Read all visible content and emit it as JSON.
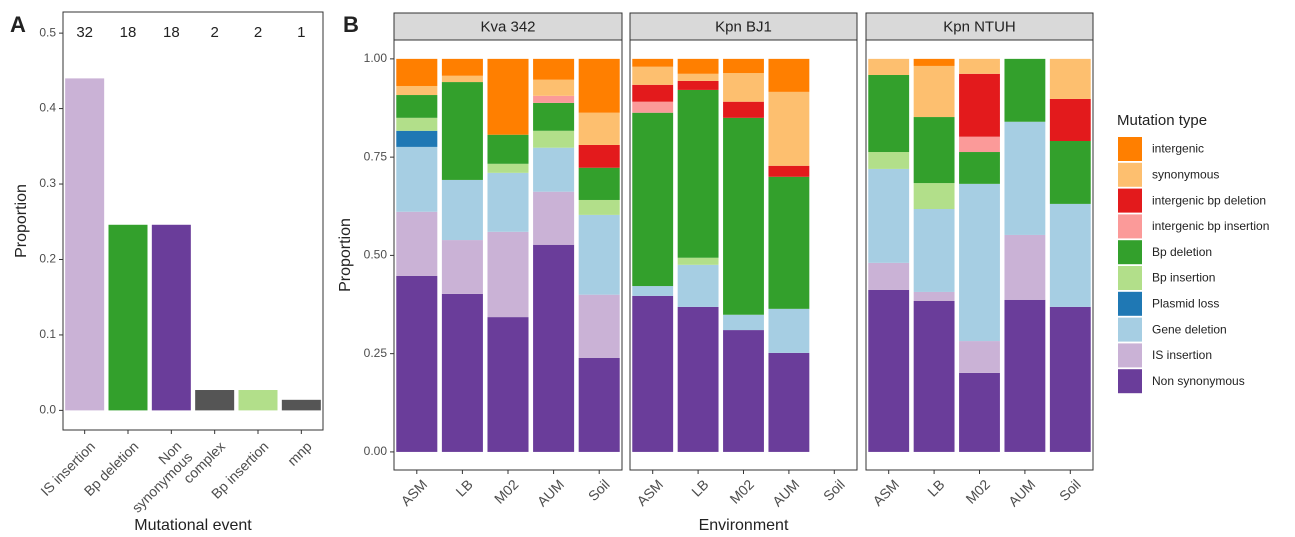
{
  "chart_data": [
    {
      "type": "bar",
      "panel_label": "A",
      "ylabel": "Proportion",
      "xlabel": "Mutational event",
      "categories": [
        "IS insertion",
        "Bp deletion",
        "Non\nsynonymous",
        "complex",
        "Bp insertion",
        "mnp"
      ],
      "values": [
        0.44,
        0.246,
        0.246,
        0.027,
        0.027,
        0.014
      ],
      "counts": [
        32,
        18,
        18,
        2,
        2,
        1
      ],
      "colors": [
        "#cab2d6",
        "#33a02c",
        "#6a3d9a",
        "#555555",
        "#b2df8a",
        "#555555"
      ],
      "ylim": [
        -0.026,
        0.528
      ],
      "yticks": [
        {
          "value": 0,
          "label": "0.0"
        },
        {
          "value": 0.1,
          "label": "0.1"
        },
        {
          "value": 0.2,
          "label": "0.2"
        },
        {
          "value": 0.3,
          "label": "0.3"
        },
        {
          "value": 0.4,
          "label": "0.4"
        },
        {
          "value": 0.5,
          "label": "0.5"
        }
      ]
    },
    {
      "type": "stacked_bar",
      "panel_label": "B",
      "ylabel": "Proportion",
      "xlabel": "Environment",
      "legend_title": "Mutation type",
      "categories": [
        "ASM",
        "LB",
        "M02",
        "AUM",
        "Soil"
      ],
      "series": [
        {
          "name": "intergenic",
          "color": "#ff7f00"
        },
        {
          "name": "synonymous",
          "color": "#fdbf6f"
        },
        {
          "name": "intergenic bp deletion",
          "color": "#e31a1c"
        },
        {
          "name": "intergenic bp insertion",
          "color": "#fb9a99"
        },
        {
          "name": "Bp deletion",
          "color": "#33a02c"
        },
        {
          "name": "Bp insertion",
          "color": "#b2df8a"
        },
        {
          "name": "Plasmid loss",
          "color": "#1f78b4"
        },
        {
          "name": "Gene deletion",
          "color": "#a6cee3"
        },
        {
          "name": "IS insertion",
          "color": "#cab2d6"
        },
        {
          "name": "Non synonymous",
          "color": "#6a3d9a"
        }
      ],
      "facets": [
        {
          "title": "Kva 342",
          "values": [
            [
              0.069,
              0.043,
              0.193,
              0.053,
              0.137
            ],
            [
              0.023,
              0.016,
              0,
              0.041,
              0.082
            ],
            [
              0,
              0,
              0,
              0,
              0.058
            ],
            [
              0,
              0,
              0,
              0.018,
              0
            ],
            [
              0.058,
              0.249,
              0.074,
              0.071,
              0.082
            ],
            [
              0.033,
              0,
              0.023,
              0.043,
              0.038
            ],
            [
              0.041,
              0,
              0,
              0,
              0
            ],
            [
              0.165,
              0.153,
              0.15,
              0.112,
              0.203
            ],
            [
              0.163,
              0.137,
              0.217,
              0.135,
              0.161
            ],
            [
              0.448,
              0.402,
              0.343,
              0.527,
              0.239
            ]
          ]
        },
        {
          "title": "Kpn BJ1",
          "values": [
            [
              0.02,
              0.038,
              0.036,
              0.084,
              0
            ],
            [
              0.046,
              0.018,
              0.073,
              0.188,
              0
            ],
            [
              0.043,
              0.023,
              0.041,
              0.028,
              0
            ],
            [
              0.028,
              0,
              0,
              0,
              0
            ],
            [
              0.441,
              0.427,
              0.501,
              0.336,
              0
            ],
            [
              0,
              0.018,
              0,
              0,
              0
            ],
            [
              0,
              0,
              0,
              0,
              0
            ],
            [
              0.025,
              0.107,
              0.039,
              0.112,
              0
            ],
            [
              0,
              0,
              0,
              0,
              0
            ],
            [
              0.397,
              0.369,
              0.31,
              0.252,
              0
            ]
          ]
        },
        {
          "title": "Kpn NTUH",
          "values": [
            [
              0,
              0.018,
              0,
              0,
              0
            ],
            [
              0.041,
              0.13,
              0.038,
              0,
              0.102
            ],
            [
              0,
              0,
              0.16,
              0,
              0.107
            ],
            [
              0,
              0,
              0.039,
              0,
              0
            ],
            [
              0.196,
              0.168,
              0.081,
              0.16,
              0.16
            ],
            [
              0.043,
              0.066,
              0,
              0,
              0
            ],
            [
              0,
              0,
              0,
              0,
              0
            ],
            [
              0.239,
              0.211,
              0.4,
              0.288,
              0.262
            ],
            [
              0.069,
              0.023,
              0.081,
              0.165,
              0
            ],
            [
              0.412,
              0.384,
              0.201,
              0.387,
              0.369
            ]
          ]
        }
      ],
      "ylim": [
        -0.046,
        1.048
      ],
      "yticks": [
        {
          "value": 0,
          "label": "0.00"
        },
        {
          "value": 0.25,
          "label": "0.25"
        },
        {
          "value": 0.5,
          "label": "0.50"
        },
        {
          "value": 0.75,
          "label": "0.75"
        },
        {
          "value": 1,
          "label": "1.00"
        }
      ]
    }
  ]
}
